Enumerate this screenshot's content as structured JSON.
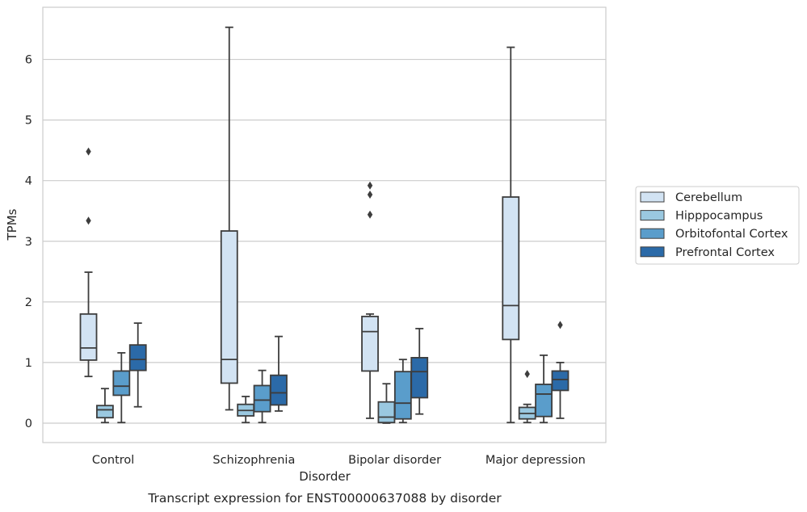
{
  "chart_data": {
    "type": "box",
    "xlabel": "Disorder",
    "ylabel": "TPMs",
    "caption": "Transcript expression for ENST00000637088 by disorder",
    "categories": [
      "Control",
      "Schizophrenia",
      "Bipolar disorder",
      "Major depression"
    ],
    "yticks": [
      "0",
      "1",
      "2",
      "3",
      "4",
      "5",
      "6"
    ],
    "ylim": [
      -0.32,
      6.86
    ],
    "grid": true,
    "legend_placement": "right",
    "series": [
      {
        "name": "Cerebellum",
        "color": "#d2e3f3",
        "boxes": [
          {
            "whislo": 0.77,
            "q1": 1.04,
            "med": 1.24,
            "q3": 1.8,
            "whishi": 2.49,
            "fliers": [
              3.34,
              4.48
            ]
          },
          {
            "whislo": 0.22,
            "q1": 0.66,
            "med": 1.05,
            "q3": 3.17,
            "whishi": 6.53,
            "fliers": []
          },
          {
            "whislo": 0.08,
            "q1": 0.86,
            "med": 1.51,
            "q3": 1.76,
            "whishi": 1.8,
            "fliers": [
              3.44,
              3.77,
              3.92
            ]
          },
          {
            "whislo": 0.01,
            "q1": 1.38,
            "med": 1.94,
            "q3": 3.73,
            "whishi": 6.2,
            "fliers": []
          }
        ]
      },
      {
        "name": "Hipppocampus",
        "color": "#9ac8e0",
        "boxes": [
          {
            "whislo": 0.01,
            "q1": 0.09,
            "med": 0.22,
            "q3": 0.29,
            "whishi": 0.57,
            "fliers": []
          },
          {
            "whislo": 0.01,
            "q1": 0.12,
            "med": 0.21,
            "q3": 0.31,
            "whishi": 0.44,
            "fliers": []
          },
          {
            "whislo": 0.0,
            "q1": 0.01,
            "med": 0.1,
            "q3": 0.35,
            "whishi": 0.65,
            "fliers": []
          },
          {
            "whislo": 0.01,
            "q1": 0.07,
            "med": 0.16,
            "q3": 0.26,
            "whishi": 0.31,
            "fliers": [
              0.81
            ]
          }
        ]
      },
      {
        "name": "Orbitofontal Cortex",
        "color": "#5a9dcb",
        "boxes": [
          {
            "whislo": 0.01,
            "q1": 0.46,
            "med": 0.61,
            "q3": 0.86,
            "whishi": 1.16,
            "fliers": []
          },
          {
            "whislo": 0.01,
            "q1": 0.19,
            "med": 0.38,
            "q3": 0.62,
            "whishi": 0.87,
            "fliers": []
          },
          {
            "whislo": 0.01,
            "q1": 0.07,
            "med": 0.33,
            "q3": 0.85,
            "whishi": 1.05,
            "fliers": []
          },
          {
            "whislo": 0.01,
            "q1": 0.11,
            "med": 0.48,
            "q3": 0.64,
            "whishi": 1.12,
            "fliers": []
          }
        ]
      },
      {
        "name": "Prefrontal Cortex",
        "color": "#2b6aa8",
        "boxes": [
          {
            "whislo": 0.27,
            "q1": 0.87,
            "med": 1.05,
            "q3": 1.29,
            "whishi": 1.65,
            "fliers": []
          },
          {
            "whislo": 0.2,
            "q1": 0.3,
            "med": 0.5,
            "q3": 0.79,
            "whishi": 1.43,
            "fliers": []
          },
          {
            "whislo": 0.15,
            "q1": 0.42,
            "med": 0.85,
            "q3": 1.08,
            "whishi": 1.56,
            "fliers": []
          },
          {
            "whislo": 0.08,
            "q1": 0.54,
            "med": 0.72,
            "q3": 0.86,
            "whishi": 1.0,
            "fliers": [
              1.62
            ]
          }
        ]
      }
    ]
  }
}
